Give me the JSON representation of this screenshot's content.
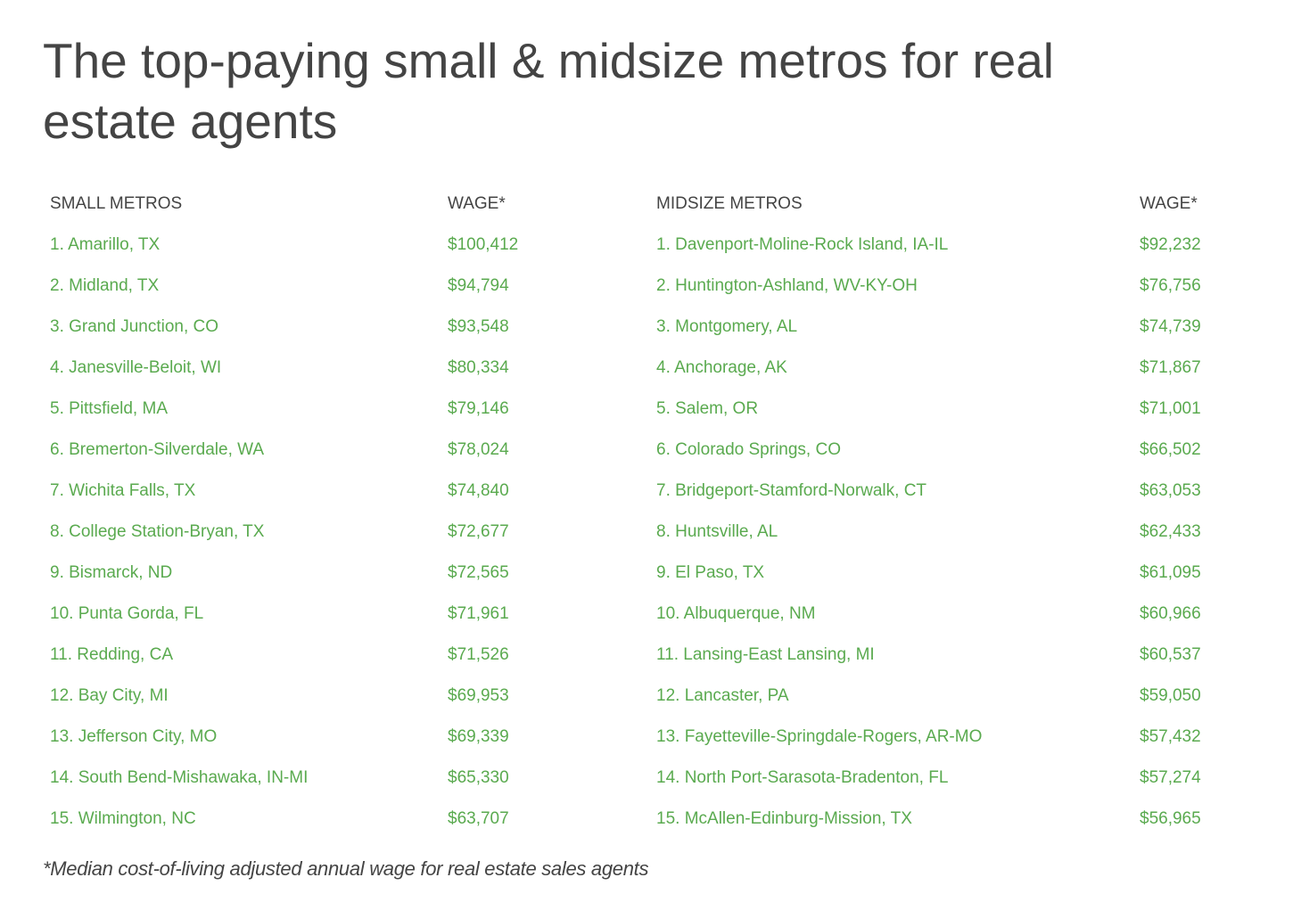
{
  "title": "The top-paying small & midsize metros for real estate agents",
  "tables": [
    {
      "headers": [
        "SMALL METROS",
        "WAGE*"
      ],
      "rows": [
        [
          "1. Amarillo, TX",
          "$100,412"
        ],
        [
          "2. Midland, TX",
          "$94,794"
        ],
        [
          "3. Grand Junction, CO",
          "$93,548"
        ],
        [
          "4. Janesville-Beloit, WI",
          "$80,334"
        ],
        [
          "5. Pittsfield, MA",
          "$79,146"
        ],
        [
          "6. Bremerton-Silverdale, WA",
          "$78,024"
        ],
        [
          "7. Wichita Falls, TX",
          "$74,840"
        ],
        [
          "8. College Station-Bryan, TX",
          "$72,677"
        ],
        [
          "9. Bismarck, ND",
          "$72,565"
        ],
        [
          "10. Punta Gorda, FL",
          "$71,961"
        ],
        [
          "11. Redding, CA",
          "$71,526"
        ],
        [
          "12. Bay City, MI",
          "$69,953"
        ],
        [
          "13. Jefferson City, MO",
          "$69,339"
        ],
        [
          "14. South Bend-Mishawaka, IN-MI",
          "$65,330"
        ],
        [
          "15. Wilmington, NC",
          "$63,707"
        ]
      ]
    },
    {
      "headers": [
        "MIDSIZE METROS",
        "WAGE*"
      ],
      "rows": [
        [
          "1. Davenport-Moline-Rock Island, IA-IL",
          "$92,232"
        ],
        [
          "2. Huntington-Ashland, WV-KY-OH",
          "$76,756"
        ],
        [
          "3. Montgomery, AL",
          "$74,739"
        ],
        [
          "4. Anchorage, AK",
          "$71,867"
        ],
        [
          "5. Salem, OR",
          "$71,001"
        ],
        [
          "6. Colorado Springs, CO",
          "$66,502"
        ],
        [
          "7. Bridgeport-Stamford-Norwalk, CT",
          "$63,053"
        ],
        [
          "8. Huntsville, AL",
          "$62,433"
        ],
        [
          "9. El Paso, TX",
          "$61,095"
        ],
        [
          "10. Albuquerque, NM",
          "$60,966"
        ],
        [
          "11. Lansing-East Lansing, MI",
          "$60,537"
        ],
        [
          "12. Lancaster, PA",
          "$59,050"
        ],
        [
          "13. Fayetteville-Springdale-Rogers, AR-MO",
          "$57,432"
        ],
        [
          "14. North Port-Sarasota-Bradenton, FL",
          "$57,274"
        ],
        [
          "15. McAllen-Edinburg-Mission, TX",
          "$56,965"
        ]
      ]
    }
  ],
  "footnote": "*Median cost-of-living adjusted annual wage for real estate sales agents"
}
